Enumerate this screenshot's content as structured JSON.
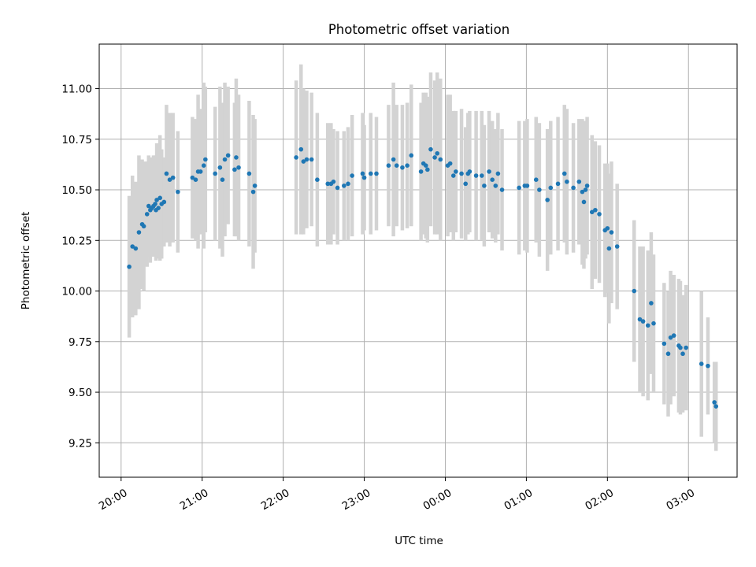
{
  "chart_data": {
    "type": "scatter",
    "title": "Photometric offset variation",
    "xlabel": "UTC time",
    "ylabel": "Photometric offset",
    "x_unit": "hours after 20:00 UTC",
    "xlim": [
      -0.27,
      7.6
    ],
    "ylim": [
      9.08,
      11.22
    ],
    "xticks": [
      {
        "value": 0,
        "label": "20:00"
      },
      {
        "value": 1,
        "label": "21:00"
      },
      {
        "value": 2,
        "label": "22:00"
      },
      {
        "value": 3,
        "label": "23:00"
      },
      {
        "value": 4,
        "label": "00:00"
      },
      {
        "value": 5,
        "label": "01:00"
      },
      {
        "value": 6,
        "label": "02:00"
      },
      {
        "value": 7,
        "label": "03:00"
      }
    ],
    "yticks": [
      {
        "value": 9.25,
        "label": "9.25"
      },
      {
        "value": 9.5,
        "label": "9.50"
      },
      {
        "value": 9.75,
        "label": "9.75"
      },
      {
        "value": 10.0,
        "label": "10.00"
      },
      {
        "value": 10.25,
        "label": "10.25"
      },
      {
        "value": 10.5,
        "label": "10.50"
      },
      {
        "value": 10.75,
        "label": "10.75"
      },
      {
        "value": 11.0,
        "label": "11.00"
      }
    ],
    "grid": true,
    "point_color": "#1f77b4",
    "errorbar_color": "#d3d3d3",
    "series": [
      {
        "points": [
          [
            0.1,
            10.12,
            0.35
          ],
          [
            0.14,
            10.22,
            0.35
          ],
          [
            0.18,
            10.21,
            0.33
          ],
          [
            0.22,
            10.29,
            0.38
          ],
          [
            0.26,
            10.33,
            0.32
          ],
          [
            0.28,
            10.32,
            0.32
          ],
          [
            0.32,
            10.38,
            0.26
          ],
          [
            0.34,
            10.42,
            0.25
          ],
          [
            0.36,
            10.4,
            0.26
          ],
          [
            0.38,
            10.41,
            0.24
          ],
          [
            0.4,
            10.42,
            0.25
          ],
          [
            0.42,
            10.43,
            0.24
          ],
          [
            0.43,
            10.4,
            0.25
          ],
          [
            0.44,
            10.45,
            0.28
          ],
          [
            0.46,
            10.41,
            0.25
          ],
          [
            0.48,
            10.46,
            0.31
          ],
          [
            0.5,
            10.43,
            0.27
          ],
          [
            0.53,
            10.44,
            0.22
          ],
          [
            0.56,
            10.58,
            0.34
          ],
          [
            0.6,
            10.55,
            0.33
          ],
          [
            0.64,
            10.56,
            0.32
          ],
          [
            0.7,
            10.49,
            0.3
          ],
          [
            0.88,
            10.56,
            0.3
          ],
          [
            0.92,
            10.55,
            0.3
          ],
          [
            0.95,
            10.59,
            0.38
          ],
          [
            0.98,
            10.59,
            0.31
          ],
          [
            1.02,
            10.62,
            0.41
          ],
          [
            1.04,
            10.65,
            0.36
          ],
          [
            1.16,
            10.58,
            0.33
          ],
          [
            1.22,
            10.61,
            0.4
          ],
          [
            1.25,
            10.55,
            0.38
          ],
          [
            1.28,
            10.65,
            0.38
          ],
          [
            1.32,
            10.67,
            0.34
          ],
          [
            1.4,
            10.6,
            0.33
          ],
          [
            1.42,
            10.66,
            0.39
          ],
          [
            1.45,
            10.61,
            0.36
          ],
          [
            1.58,
            10.58,
            0.36
          ],
          [
            1.63,
            10.49,
            0.38
          ],
          [
            1.65,
            10.52,
            0.33
          ],
          [
            2.16,
            10.66,
            0.38
          ],
          [
            2.22,
            10.7,
            0.42
          ],
          [
            2.25,
            10.64,
            0.36
          ],
          [
            2.29,
            10.65,
            0.34
          ],
          [
            2.35,
            10.65,
            0.33
          ],
          [
            2.42,
            10.55,
            0.33
          ],
          [
            2.55,
            10.53,
            0.3
          ],
          [
            2.59,
            10.53,
            0.3
          ],
          [
            2.62,
            10.54,
            0.26
          ],
          [
            2.67,
            10.51,
            0.28
          ],
          [
            2.75,
            10.52,
            0.27
          ],
          [
            2.8,
            10.53,
            0.28
          ],
          [
            2.85,
            10.57,
            0.3
          ],
          [
            2.98,
            10.58,
            0.3
          ],
          [
            3.0,
            10.56,
            0.26
          ],
          [
            3.08,
            10.58,
            0.3
          ],
          [
            3.15,
            10.58,
            0.28
          ],
          [
            3.3,
            10.62,
            0.3
          ],
          [
            3.36,
            10.65,
            0.38
          ],
          [
            3.4,
            10.62,
            0.3
          ],
          [
            3.47,
            10.61,
            0.31
          ],
          [
            3.53,
            10.62,
            0.31
          ],
          [
            3.58,
            10.67,
            0.35
          ],
          [
            3.7,
            10.59,
            0.34
          ],
          [
            3.73,
            10.63,
            0.35
          ],
          [
            3.76,
            10.62,
            0.36
          ],
          [
            3.78,
            10.6,
            0.36
          ],
          [
            3.82,
            10.7,
            0.38
          ],
          [
            3.87,
            10.66,
            0.38
          ],
          [
            3.9,
            10.68,
            0.4
          ],
          [
            3.94,
            10.65,
            0.4
          ],
          [
            4.03,
            10.62,
            0.35
          ],
          [
            4.06,
            10.63,
            0.34
          ],
          [
            4.1,
            10.57,
            0.32
          ],
          [
            4.13,
            10.59,
            0.3
          ],
          [
            4.2,
            10.58,
            0.32
          ],
          [
            4.25,
            10.53,
            0.28
          ],
          [
            4.28,
            10.58,
            0.3
          ],
          [
            4.3,
            10.59,
            0.3
          ],
          [
            4.38,
            10.57,
            0.32
          ],
          [
            4.45,
            10.57,
            0.32
          ],
          [
            4.48,
            10.52,
            0.3
          ],
          [
            4.54,
            10.59,
            0.3
          ],
          [
            4.58,
            10.55,
            0.29
          ],
          [
            4.62,
            10.52,
            0.28
          ],
          [
            4.65,
            10.58,
            0.3
          ],
          [
            4.7,
            10.5,
            0.3
          ],
          [
            4.91,
            10.51,
            0.33
          ],
          [
            4.98,
            10.52,
            0.32
          ],
          [
            5.01,
            10.52,
            0.33
          ],
          [
            5.12,
            10.55,
            0.31
          ],
          [
            5.16,
            10.5,
            0.33
          ],
          [
            5.26,
            10.45,
            0.35
          ],
          [
            5.3,
            10.51,
            0.33
          ],
          [
            5.39,
            10.53,
            0.33
          ],
          [
            5.47,
            10.58,
            0.34
          ],
          [
            5.5,
            10.54,
            0.36
          ],
          [
            5.58,
            10.51,
            0.32
          ],
          [
            5.65,
            10.54,
            0.31
          ],
          [
            5.69,
            10.49,
            0.36
          ],
          [
            5.71,
            10.44,
            0.33
          ],
          [
            5.73,
            10.5,
            0.34
          ],
          [
            5.75,
            10.52,
            0.34
          ],
          [
            5.81,
            10.39,
            0.38
          ],
          [
            5.85,
            10.4,
            0.34
          ],
          [
            5.9,
            10.38,
            0.34
          ],
          [
            5.97,
            10.3,
            0.33
          ],
          [
            6.0,
            10.31,
            0.32
          ],
          [
            6.02,
            10.21,
            0.37
          ],
          [
            6.05,
            10.29,
            0.35
          ],
          [
            6.12,
            10.22,
            0.31
          ],
          [
            6.33,
            10.0,
            0.35
          ],
          [
            6.4,
            9.86,
            0.36
          ],
          [
            6.44,
            9.85,
            0.37
          ],
          [
            6.5,
            9.83,
            0.37
          ],
          [
            6.54,
            9.94,
            0.35
          ],
          [
            6.57,
            9.84,
            0.34
          ],
          [
            6.7,
            9.74,
            0.3
          ],
          [
            6.75,
            9.69,
            0.31
          ],
          [
            6.78,
            9.77,
            0.33
          ],
          [
            6.82,
            9.78,
            0.3
          ],
          [
            6.88,
            9.73,
            0.33
          ],
          [
            6.9,
            9.72,
            0.33
          ],
          [
            6.93,
            9.69,
            0.29
          ],
          [
            6.97,
            9.72,
            0.31
          ],
          [
            7.16,
            9.64,
            0.36
          ],
          [
            7.24,
            9.63,
            0.24
          ],
          [
            7.32,
            9.45,
            0.2
          ],
          [
            7.34,
            9.43,
            0.22
          ]
        ]
      }
    ]
  }
}
